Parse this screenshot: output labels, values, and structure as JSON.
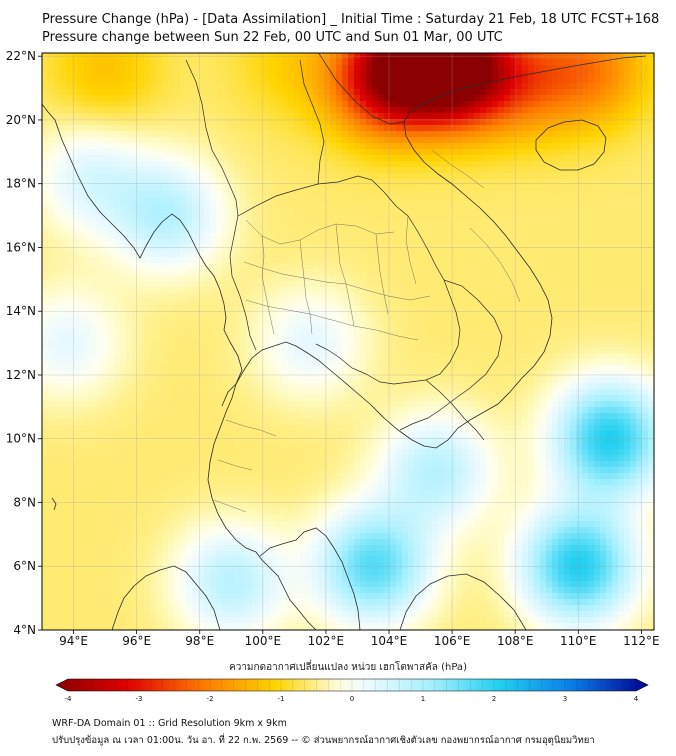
{
  "header": {
    "title_line1": "Pressure Change (hPa) - [Data Assimilation] _ Initial Time : Saturday 21 Feb, 18 UTC FCST+168",
    "title_line2": "Pressure change between Sun 22 Feb, 00 UTC and Sun 01 Mar, 00 UTC"
  },
  "map": {
    "lat_labels": [
      "22°N",
      "20°N",
      "18°N",
      "16°N",
      "14°N",
      "12°N",
      "10°N",
      "8°N",
      "6°N",
      "4°N"
    ],
    "lon_labels": [
      "94°E",
      "96°E",
      "98°E",
      "100°E",
      "102°E",
      "104°E",
      "106°E",
      "108°E",
      "110°E",
      "112°E"
    ],
    "field_peaks": [
      {
        "lon": 105.3,
        "lat": 22.0,
        "value": -4.0
      },
      {
        "lon": 103.8,
        "lat": 21.2,
        "value": -2.8
      },
      {
        "lon": 106.5,
        "lat": 21.4,
        "value": -2.6
      },
      {
        "lon": 108.5,
        "lat": 21.2,
        "value": -1.6
      },
      {
        "lon": 110.5,
        "lat": 21.6,
        "value": -1.8
      },
      {
        "lon": 100.8,
        "lat": 21.8,
        "value": -1.0
      },
      {
        "lon": 95.0,
        "lat": 21.5,
        "value": -1.2
      },
      {
        "lon": 97.0,
        "lat": 17.0,
        "value": 0.8
      },
      {
        "lon": 94.5,
        "lat": 18.2,
        "value": 0.4
      },
      {
        "lon": 111.0,
        "lat": 10.0,
        "value": 2.0
      },
      {
        "lon": 110.0,
        "lat": 6.0,
        "value": 2.0
      },
      {
        "lon": 103.5,
        "lat": 6.0,
        "value": 1.6
      },
      {
        "lon": 99.0,
        "lat": 5.5,
        "value": 0.8
      },
      {
        "lon": 105.5,
        "lat": 9.0,
        "value": 0.8
      },
      {
        "lon": 101.5,
        "lat": 13.0,
        "value": 0.3
      },
      {
        "lon": 93.8,
        "lat": 13.0,
        "value": 0.3
      }
    ]
  },
  "colorbar": {
    "label": "ความกดอากาศเปลี่ยนแปลง หน่วย เฮกโตพาสคัล (hPa)",
    "ticks": [
      "-4",
      "-3",
      "-2",
      "-1",
      "0",
      "1",
      "2",
      "3",
      "4"
    ]
  },
  "footer": {
    "line1": "WRF-DA Domain 01 :: Grid Resolution 9km x 9km",
    "line2": "ปรับปรุงข้อมูล ณ เวลา 01:00น. วัน อา. ที่ 22 ก.พ. 2569 -- © ส่วนพยากรณ์อากาศเชิงตัวเลข กองพยากรณ์อากาศ กรมอุตุนิยมวิทยา"
  }
}
